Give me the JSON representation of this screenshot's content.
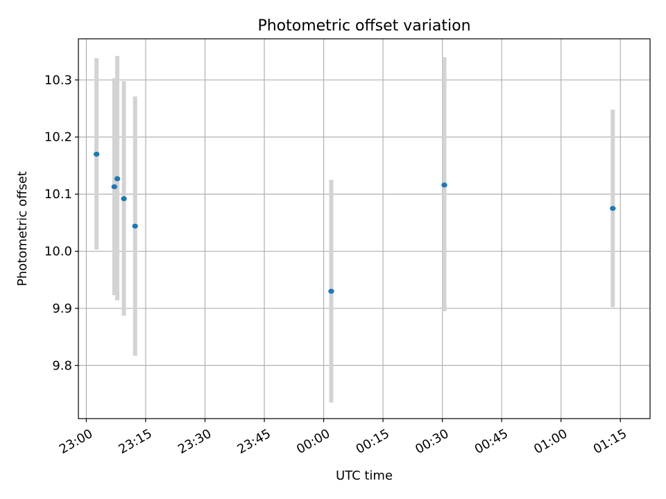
{
  "chart_data": {
    "type": "scatter",
    "title": "Photometric offset variation",
    "xlabel": "UTC time",
    "ylabel": "Photometric offset",
    "x_ticks": [
      "23:00",
      "23:15",
      "23:30",
      "23:45",
      "00:00",
      "00:15",
      "00:30",
      "00:45",
      "01:00",
      "01:15"
    ],
    "y_ticks": [
      "9.8",
      "9.9",
      "10.0",
      "10.1",
      "10.2",
      "10.3"
    ],
    "xlim": [
      "22:58:00",
      "01:22:30"
    ],
    "ylim": [
      9.707,
      10.372
    ],
    "grid": true,
    "series": [
      {
        "x": [
          "23:02:35",
          "23:07:05",
          "23:07:50",
          "23:09:30",
          "23:12:20",
          "00:01:55",
          "00:30:30",
          "01:13:05"
        ],
        "y": [
          10.17,
          10.113,
          10.127,
          10.092,
          10.044,
          9.93,
          10.116,
          10.075
        ],
        "yerr_low": [
          10.003,
          9.923,
          9.914,
          9.887,
          9.817,
          9.735,
          9.895,
          9.902
        ],
        "yerr_high": [
          10.338,
          10.303,
          10.342,
          10.298,
          10.271,
          10.125,
          10.34,
          10.248
        ],
        "color": "#1f77b4",
        "errorbar_color": "#d3d3d3"
      }
    ]
  }
}
